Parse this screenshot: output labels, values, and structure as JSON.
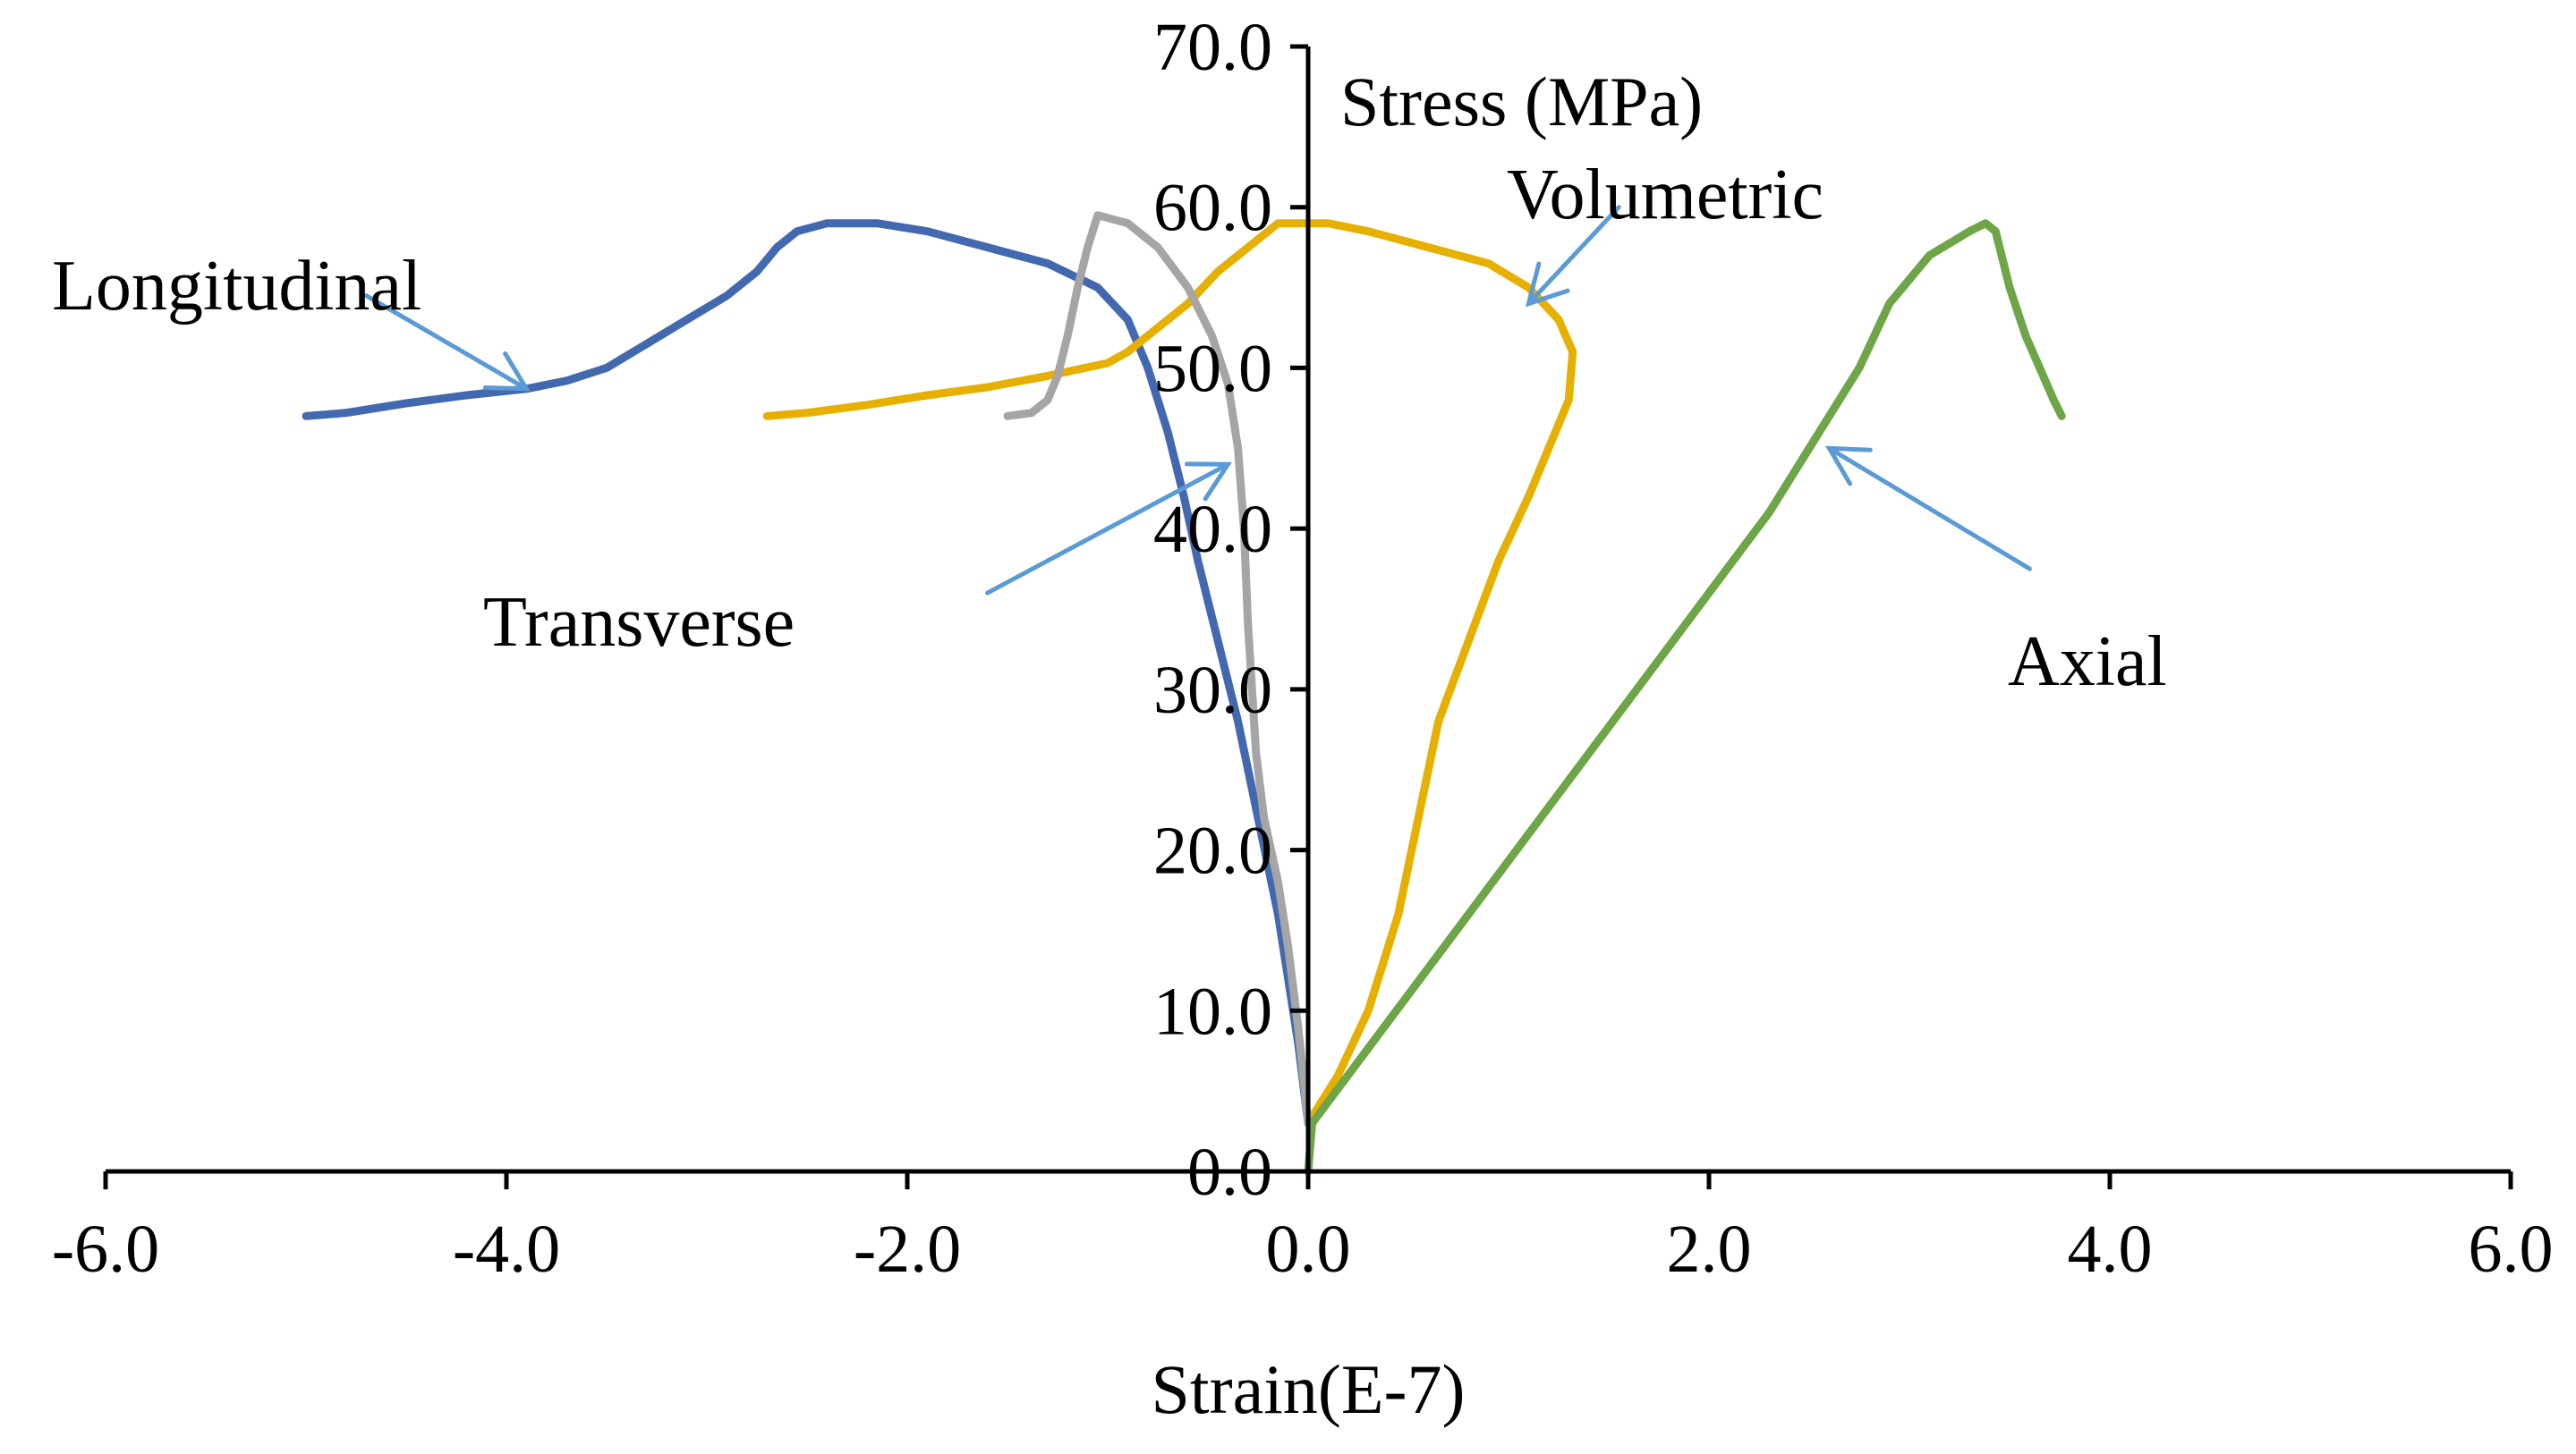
{
  "chart_data": {
    "type": "line",
    "title": "",
    "xlabel": "Strain(E-7)",
    "ylabel": "Stress (MPa)",
    "xlim": [
      -6.0,
      6.0
    ],
    "ylim": [
      0.0,
      70.0
    ],
    "x_ticks": [
      "-6.0",
      "-4.0",
      "-2.0",
      "0.0",
      "2.0",
      "4.0",
      "6.0"
    ],
    "x_tick_values": [
      -6,
      -4,
      -2,
      0,
      2,
      4,
      6
    ],
    "y_ticks": [
      "0.0",
      "10.0",
      "20.0",
      "30.0",
      "40.0",
      "50.0",
      "60.0",
      "70.0"
    ],
    "y_tick_values": [
      0,
      10,
      20,
      30,
      40,
      50,
      60,
      70
    ],
    "grid": false,
    "colors": {
      "longitudinal": "#4268b0",
      "transverse": "#a5a5a5",
      "volumetric": "#e6b000",
      "axial": "#6ea546",
      "arrow": "#5b9bd5"
    },
    "series": [
      {
        "name": "Longitudinal",
        "label": "Longitudinal",
        "color_key": "longitudinal",
        "points": [
          [
            0,
            3
          ],
          [
            -0.05,
            8
          ],
          [
            -0.1,
            12
          ],
          [
            -0.15,
            16
          ],
          [
            -0.25,
            22
          ],
          [
            -0.35,
            28
          ],
          [
            -0.45,
            33
          ],
          [
            -0.55,
            38
          ],
          [
            -0.62,
            42
          ],
          [
            -0.7,
            46
          ],
          [
            -0.8,
            50
          ],
          [
            -0.9,
            53
          ],
          [
            -1.05,
            55
          ],
          [
            -1.3,
            56.5
          ],
          [
            -1.6,
            57.5
          ],
          [
            -1.9,
            58.5
          ],
          [
            -2.15,
            59
          ],
          [
            -2.4,
            59
          ],
          [
            -2.55,
            58.5
          ],
          [
            -2.65,
            57.5
          ],
          [
            -2.75,
            56
          ],
          [
            -2.9,
            54.5
          ],
          [
            -3.1,
            53
          ],
          [
            -3.3,
            51.5
          ],
          [
            -3.5,
            50
          ],
          [
            -3.7,
            49.2
          ],
          [
            -3.9,
            48.7
          ],
          [
            -4.2,
            48.3
          ],
          [
            -4.5,
            47.8
          ],
          [
            -4.8,
            47.2
          ],
          [
            -5.0,
            47
          ]
        ]
      },
      {
        "name": "Transverse",
        "label": "Transverse",
        "color_key": "transverse",
        "points": [
          [
            0,
            3
          ],
          [
            -0.05,
            9
          ],
          [
            -0.1,
            14
          ],
          [
            -0.15,
            18
          ],
          [
            -0.22,
            22
          ],
          [
            -0.26,
            26
          ],
          [
            -0.28,
            30
          ],
          [
            -0.3,
            34
          ],
          [
            -0.32,
            40
          ],
          [
            -0.35,
            45
          ],
          [
            -0.4,
            49
          ],
          [
            -0.48,
            52
          ],
          [
            -0.6,
            55
          ],
          [
            -0.75,
            57.5
          ],
          [
            -0.9,
            59
          ],
          [
            -1.05,
            59.5
          ],
          [
            -1.1,
            57.5
          ],
          [
            -1.15,
            55
          ],
          [
            -1.2,
            52
          ],
          [
            -1.25,
            49.5
          ],
          [
            -1.3,
            48
          ],
          [
            -1.38,
            47.2
          ],
          [
            -1.5,
            47
          ]
        ]
      },
      {
        "name": "Volumetric",
        "label": "Volumetric",
        "color_key": "volumetric",
        "points": [
          [
            0,
            3
          ],
          [
            0.15,
            6
          ],
          [
            0.3,
            10
          ],
          [
            0.45,
            16
          ],
          [
            0.55,
            22
          ],
          [
            0.65,
            28
          ],
          [
            0.8,
            33
          ],
          [
            0.95,
            38
          ],
          [
            1.1,
            42
          ],
          [
            1.2,
            45
          ],
          [
            1.3,
            48
          ],
          [
            1.32,
            51
          ],
          [
            1.25,
            53
          ],
          [
            1.1,
            55
          ],
          [
            0.9,
            56.5
          ],
          [
            0.6,
            57.5
          ],
          [
            0.3,
            58.5
          ],
          [
            0.1,
            59
          ],
          [
            -0.15,
            59
          ],
          [
            -0.3,
            57.5
          ],
          [
            -0.45,
            56
          ],
          [
            -0.6,
            54
          ],
          [
            -0.75,
            52.5
          ],
          [
            -0.9,
            51
          ],
          [
            -1.0,
            50.3
          ],
          [
            -1.3,
            49.5
          ],
          [
            -1.6,
            48.8
          ],
          [
            -1.9,
            48.3
          ],
          [
            -2.2,
            47.7
          ],
          [
            -2.5,
            47.2
          ],
          [
            -2.7,
            47
          ]
        ]
      },
      {
        "name": "Axial",
        "label": "Axial",
        "color_key": "axial",
        "points": [
          [
            0,
            0
          ],
          [
            0.02,
            3
          ],
          [
            0.2,
            6
          ],
          [
            0.5,
            11
          ],
          [
            0.8,
            16
          ],
          [
            1.1,
            21
          ],
          [
            1.4,
            26
          ],
          [
            1.7,
            31
          ],
          [
            2.0,
            36
          ],
          [
            2.3,
            41
          ],
          [
            2.55,
            46
          ],
          [
            2.75,
            50
          ],
          [
            2.9,
            54
          ],
          [
            3.1,
            57
          ],
          [
            3.3,
            58.5
          ],
          [
            3.38,
            59
          ],
          [
            3.43,
            58.5
          ],
          [
            3.5,
            55
          ],
          [
            3.58,
            52
          ],
          [
            3.65,
            50
          ],
          [
            3.72,
            48
          ],
          [
            3.76,
            47
          ]
        ]
      }
    ],
    "annotations": [
      {
        "text": "Longitudinal",
        "target": "longitudinal"
      },
      {
        "text": "Transverse",
        "target": "transverse"
      },
      {
        "text": "Volumetric",
        "target": "volumetric"
      },
      {
        "text": "Axial",
        "target": "axial"
      }
    ]
  }
}
